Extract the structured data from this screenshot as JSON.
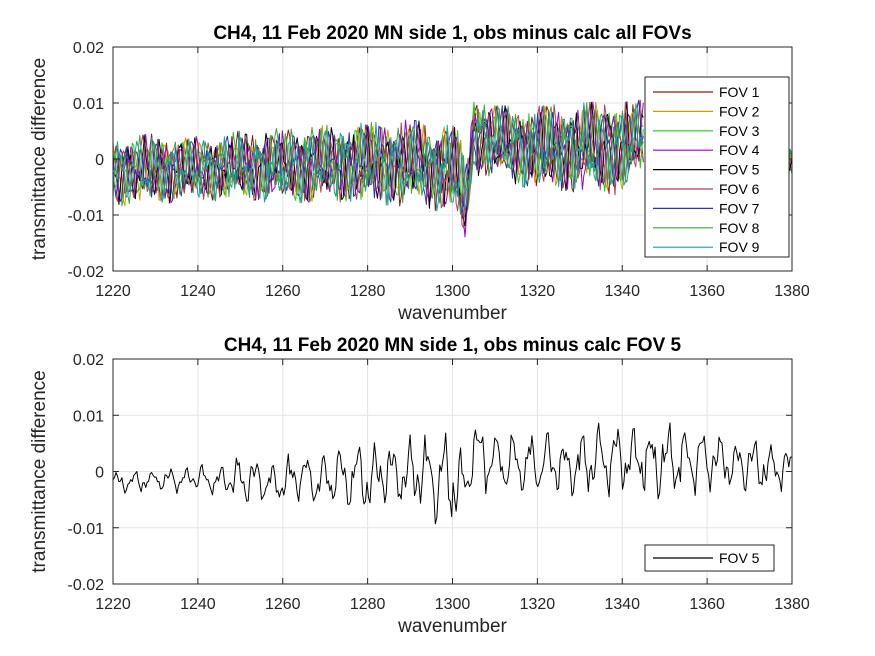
{
  "chart_data": [
    {
      "type": "line",
      "title": "CH4, 11 Feb 2020 MN side 1, obs minus calc all FOVs",
      "xlabel": "wavenumber",
      "ylabel": "transmittance difference",
      "xlim": [
        1220,
        1380
      ],
      "ylim": [
        -0.02,
        0.02
      ],
      "xticks": [
        1220,
        1240,
        1260,
        1280,
        1300,
        1320,
        1340,
        1360,
        1380
      ],
      "yticks": [
        -0.02,
        -0.01,
        0,
        0.01,
        0.02
      ],
      "xtick_labels": [
        "1220",
        "1240",
        "1260",
        "1280",
        "1300",
        "1320",
        "1340",
        "1360",
        "1380"
      ],
      "ytick_labels": [
        "-0.02",
        "-0.01",
        "0",
        "0.01",
        "0.02"
      ],
      "grid": true,
      "legend_position": "top-right",
      "envelope": {
        "x": [
          1220,
          1230,
          1240,
          1250,
          1260,
          1270,
          1280,
          1290,
          1295,
          1300,
          1302,
          1303,
          1304,
          1305,
          1306,
          1310,
          1320,
          1330,
          1340,
          1345,
          1346,
          1375,
          1376,
          1380
        ],
        "max": [
          0.004,
          0.0045,
          0.004,
          0.005,
          0.0055,
          0.006,
          0.0065,
          0.007,
          0.0065,
          0.006,
          0.0045,
          -0.002,
          0.003,
          0.0125,
          0.012,
          0.0095,
          0.0095,
          0.01,
          0.0105,
          0.0105,
          null,
          null,
          0.0045,
          0.003
        ],
        "min": [
          -0.0085,
          -0.008,
          -0.0075,
          -0.0075,
          -0.008,
          -0.0075,
          -0.008,
          -0.0085,
          -0.009,
          -0.01,
          -0.0135,
          -0.016,
          -0.009,
          -0.0015,
          -0.004,
          -0.003,
          -0.006,
          -0.006,
          -0.0065,
          -0.002,
          null,
          null,
          -0.003,
          -0.003
        ]
      },
      "series": [
        {
          "name": "FOV 1",
          "color": "#8b1a1a"
        },
        {
          "name": "FOV 2",
          "color": "#c8a000"
        },
        {
          "name": "FOV 3",
          "color": "#1fc81f"
        },
        {
          "name": "FOV 4",
          "color": "#a000c0"
        },
        {
          "name": "FOV 5",
          "color": "#000000"
        },
        {
          "name": "FOV 6",
          "color": "#b2405a"
        },
        {
          "name": "FOV 7",
          "color": "#3030b0"
        },
        {
          "name": "FOV 8",
          "color": "#40a040"
        },
        {
          "name": "FOV 9",
          "color": "#1aa0a0"
        }
      ]
    },
    {
      "type": "line",
      "title": "CH4, 11 Feb 2020 MN side 1, obs minus calc FOV 5",
      "xlabel": "wavenumber",
      "ylabel": "transmittance difference",
      "xlim": [
        1220,
        1380
      ],
      "ylim": [
        -0.02,
        0.02
      ],
      "xticks": [
        1220,
        1240,
        1260,
        1280,
        1300,
        1320,
        1340,
        1360,
        1380
      ],
      "yticks": [
        -0.02,
        -0.01,
        0,
        0.01,
        0.02
      ],
      "xtick_labels": [
        "1220",
        "1240",
        "1260",
        "1280",
        "1300",
        "1320",
        "1340",
        "1360",
        "1380"
      ],
      "ytick_labels": [
        "-0.02",
        "-0.01",
        "0",
        "0.01",
        "0.02"
      ],
      "grid": true,
      "legend_position": "bottom-right",
      "envelope": {
        "x": [
          1220,
          1230,
          1240,
          1245,
          1250,
          1260,
          1270,
          1280,
          1290,
          1295,
          1300,
          1302,
          1303,
          1304,
          1305,
          1306,
          1310,
          1320,
          1330,
          1340,
          1350,
          1360,
          1370,
          1380
        ],
        "max": [
          0.0,
          0.001,
          0.0015,
          0.0015,
          0.003,
          0.003,
          0.004,
          0.0055,
          0.0065,
          0.0075,
          0.0075,
          0.005,
          0.004,
          0.004,
          0.012,
          0.0095,
          0.0085,
          0.008,
          0.008,
          0.0095,
          0.0095,
          0.008,
          0.0065,
          0.0045
        ],
        "min": [
          -0.004,
          -0.004,
          -0.004,
          -0.005,
          -0.006,
          -0.0065,
          -0.0065,
          -0.0075,
          -0.007,
          -0.009,
          -0.0105,
          -0.012,
          -0.012,
          -0.005,
          -0.002,
          -0.003,
          -0.005,
          -0.006,
          -0.0055,
          -0.005,
          -0.005,
          -0.004,
          -0.004,
          -0.0035
        ]
      },
      "series": [
        {
          "name": "FOV 5",
          "color": "#000000"
        }
      ]
    }
  ]
}
